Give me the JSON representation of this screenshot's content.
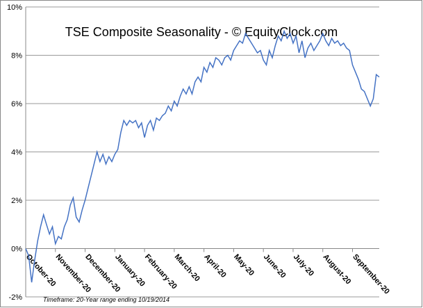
{
  "chart_data": {
    "type": "line",
    "title": "TSE Composite Seasonality - © EquityClock.com",
    "footnote": "Timeframe: 20-Year range ending 10/19/2014",
    "categories": [
      "October-20",
      null,
      null,
      null,
      null,
      null,
      null,
      null,
      null,
      null,
      "November-20",
      null,
      null,
      null,
      null,
      null,
      null,
      null,
      null,
      null,
      "December-20",
      null,
      null,
      null,
      null,
      null,
      null,
      null,
      null,
      null,
      "January-20",
      null,
      null,
      null,
      null,
      null,
      null,
      null,
      null,
      null,
      "February-20",
      null,
      null,
      null,
      null,
      null,
      null,
      null,
      null,
      null,
      "March-20",
      null,
      null,
      null,
      null,
      null,
      null,
      null,
      null,
      null,
      "April-20",
      null,
      null,
      null,
      null,
      null,
      null,
      null,
      null,
      null,
      "May-20",
      null,
      null,
      null,
      null,
      null,
      null,
      null,
      null,
      null,
      "June-20",
      null,
      null,
      null,
      null,
      null,
      null,
      null,
      null,
      null,
      "July-20",
      null,
      null,
      null,
      null,
      null,
      null,
      null,
      null,
      null,
      "August-20",
      null,
      null,
      null,
      null,
      null,
      null,
      null,
      null,
      null,
      "September-20",
      null,
      null,
      null,
      null,
      null,
      null,
      null,
      null,
      null
    ],
    "series": [
      {
        "color": "#4472c4",
        "values": [
          0,
          -0.3,
          -1.4,
          -0.5,
          0.3,
          0.9,
          1.4,
          1.0,
          0.6,
          0.9,
          0.2,
          0.5,
          0.4,
          0.9,
          1.2,
          1.8,
          2.1,
          1.3,
          1.1,
          1.6,
          2.0,
          2.5,
          3.0,
          3.5,
          4.0,
          3.6,
          3.9,
          3.5,
          3.8,
          3.6,
          3.9,
          4.1,
          4.8,
          5.3,
          5.1,
          5.3,
          5.2,
          5.3,
          5.0,
          5.2,
          4.6,
          5.1,
          5.3,
          4.9,
          5.4,
          5.3,
          5.5,
          5.6,
          5.9,
          5.7,
          6.1,
          5.9,
          6.3,
          6.6,
          6.4,
          6.7,
          6.4,
          6.9,
          7.1,
          6.9,
          7.5,
          7.3,
          7.7,
          7.5,
          7.9,
          7.8,
          7.6,
          7.9,
          8.0,
          7.8,
          8.2,
          8.4,
          8.6,
          8.5,
          8.9,
          8.7,
          8.5,
          8.3,
          8.1,
          8.2,
          7.8,
          7.6,
          8.2,
          7.9,
          8.4,
          8.8,
          8.6,
          9.0,
          8.7,
          8.9,
          8.5,
          8.8,
          8.1,
          8.6,
          7.9,
          8.3,
          8.5,
          8.2,
          8.4,
          8.6,
          8.9,
          8.6,
          8.4,
          8.7,
          8.5,
          8.6,
          8.4,
          8.5,
          8.3,
          8.2,
          7.6,
          7.3,
          7.0,
          6.6,
          6.5,
          6.2,
          5.9,
          6.2,
          7.2,
          7.1
        ]
      }
    ],
    "ylim": [
      -2,
      10
    ],
    "yticks": [
      {
        "value": -2,
        "label": "-2%"
      },
      {
        "value": 0,
        "label": "0%"
      },
      {
        "value": 2,
        "label": "2%"
      },
      {
        "value": 4,
        "label": "4%"
      },
      {
        "value": 6,
        "label": "6%"
      },
      {
        "value": 8,
        "label": "8%"
      },
      {
        "value": 10,
        "label": "10%"
      }
    ],
    "grid": true
  }
}
